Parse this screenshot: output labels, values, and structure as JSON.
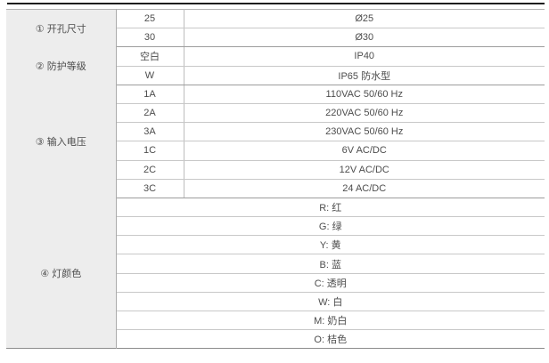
{
  "table": {
    "name": "product-ordering-spec-table",
    "columns": [
      "category",
      "code",
      "value"
    ],
    "sections": [
      {
        "label": "① 开孔尺寸",
        "rows": [
          {
            "code": "25",
            "value": "Ø25"
          },
          {
            "code": "30",
            "value": "Ø30"
          }
        ]
      },
      {
        "label": "② 防护等级",
        "rows": [
          {
            "code": "空白",
            "value": "IP40"
          },
          {
            "code": "W",
            "value": "IP65 防水型"
          }
        ]
      },
      {
        "label": "③ 输入电压",
        "rows": [
          {
            "code": "1A",
            "value": "110VAC 50/60 Hz"
          },
          {
            "code": "2A",
            "value": "220VAC 50/60 Hz"
          },
          {
            "code": "3A",
            "value": "230VAC 50/60 Hz"
          },
          {
            "code": "1C",
            "value": "6V AC/DC"
          },
          {
            "code": "2C",
            "value": "12V AC/DC"
          },
          {
            "code": "3C",
            "value": "24 AC/DC"
          }
        ]
      },
      {
        "label": "④ 灯颜色",
        "merged": true,
        "rows": [
          {
            "value": "R: 红"
          },
          {
            "value": "G: 绿"
          },
          {
            "value": "Y: 黄"
          },
          {
            "value": "B: 蓝"
          },
          {
            "value": "C: 透明"
          },
          {
            "value": "W: 白"
          },
          {
            "value": "M: 奶白"
          },
          {
            "value": "O: 桔色"
          }
        ]
      }
    ]
  },
  "colors": {
    "label_cell_bg": "#ededed",
    "text": "#4d4d4d",
    "row_line": "#c8c8c8",
    "section_line": "#9d9d9d",
    "top_rule": "#1e1e1e"
  }
}
